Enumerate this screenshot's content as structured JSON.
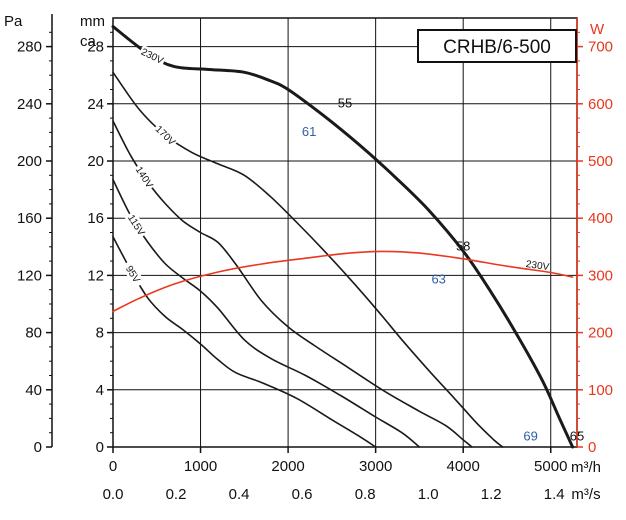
{
  "chart_data": {
    "type": "line",
    "title": "CRHB/6-500",
    "x_primary": {
      "unit": "m³/h",
      "range": [
        0,
        5300
      ],
      "ticks": [
        "0",
        "1000",
        "2000",
        "3000",
        "4000",
        "5000"
      ]
    },
    "x_secondary": {
      "unit": "m³/s",
      "ticks": [
        "0.0",
        "0.2",
        "0.4",
        "0.6",
        "0.8",
        "1.0",
        "1.2",
        "1.4"
      ]
    },
    "y_left_pa": {
      "unit": "Pa",
      "range": [
        0,
        300
      ],
      "ticks": [
        "0",
        "40",
        "80",
        "120",
        "160",
        "200",
        "240",
        "280"
      ]
    },
    "y_left_mmca": {
      "unit_line1": "mm",
      "unit_line2": "ca",
      "range": [
        0,
        30
      ],
      "ticks": [
        "0",
        "4",
        "8",
        "12",
        "16",
        "20",
        "24",
        "28"
      ]
    },
    "y_right_w": {
      "unit": "W",
      "range": [
        0,
        750
      ],
      "ticks": [
        "0",
        "100",
        "200",
        "300",
        "400",
        "500",
        "600",
        "700"
      ]
    },
    "grid": true,
    "colors": {
      "pressure": "#1a1a1a",
      "power": "#e8381e",
      "annotation_blue": "#2f5fa8"
    },
    "series": [
      {
        "name": "230V",
        "axis": "pressure_pa",
        "highlight": true,
        "points": [
          [
            0,
            294
          ],
          [
            400,
            275
          ],
          [
            700,
            266
          ],
          [
            1100,
            264
          ],
          [
            1500,
            262
          ],
          [
            1800,
            256
          ],
          [
            2000,
            250
          ],
          [
            2400,
            232
          ],
          [
            2800,
            212
          ],
          [
            3200,
            190
          ],
          [
            3600,
            166
          ],
          [
            4000,
            137
          ],
          [
            4300,
            110
          ],
          [
            4600,
            80
          ],
          [
            4900,
            47
          ],
          [
            5100,
            20
          ],
          [
            5250,
            0
          ]
        ]
      },
      {
        "name": "170V",
        "axis": "pressure_pa",
        "points": [
          [
            0,
            262
          ],
          [
            300,
            236
          ],
          [
            600,
            218
          ],
          [
            900,
            206
          ],
          [
            1200,
            198
          ],
          [
            1500,
            190
          ],
          [
            1800,
            175
          ],
          [
            2100,
            157
          ],
          [
            2400,
            138
          ],
          [
            2700,
            118
          ],
          [
            3000,
            97
          ],
          [
            3300,
            75
          ],
          [
            3600,
            54
          ],
          [
            3900,
            34
          ],
          [
            4150,
            17
          ],
          [
            4350,
            5
          ],
          [
            4450,
            0
          ]
        ]
      },
      {
        "name": "140V",
        "axis": "pressure_pa",
        "points": [
          [
            0,
            228
          ],
          [
            200,
            204
          ],
          [
            400,
            185
          ],
          [
            600,
            170
          ],
          [
            800,
            158
          ],
          [
            1000,
            150
          ],
          [
            1200,
            143
          ],
          [
            1400,
            128
          ],
          [
            1700,
            102
          ],
          [
            2000,
            84
          ],
          [
            2300,
            71
          ],
          [
            2700,
            55
          ],
          [
            3100,
            39
          ],
          [
            3500,
            25
          ],
          [
            3800,
            15
          ],
          [
            4000,
            5
          ],
          [
            4100,
            0
          ]
        ]
      },
      {
        "name": "115V",
        "axis": "pressure_pa",
        "points": [
          [
            0,
            187
          ],
          [
            200,
            162
          ],
          [
            400,
            143
          ],
          [
            600,
            128
          ],
          [
            800,
            118
          ],
          [
            1000,
            109
          ],
          [
            1200,
            97
          ],
          [
            1500,
            75
          ],
          [
            1800,
            62
          ],
          [
            2200,
            50
          ],
          [
            2600,
            36
          ],
          [
            3000,
            21
          ],
          [
            3300,
            10
          ],
          [
            3500,
            0
          ]
        ]
      },
      {
        "name": "95V",
        "axis": "pressure_pa",
        "points": [
          [
            0,
            147
          ],
          [
            200,
            124
          ],
          [
            400,
            104
          ],
          [
            600,
            91
          ],
          [
            800,
            82
          ],
          [
            1000,
            72
          ],
          [
            1200,
            61
          ],
          [
            1400,
            52
          ],
          [
            1700,
            45
          ],
          [
            2100,
            34
          ],
          [
            2500,
            19
          ],
          [
            2800,
            8
          ],
          [
            3000,
            0
          ]
        ]
      },
      {
        "name": "230V",
        "axis": "power_w",
        "points": [
          [
            0,
            237
          ],
          [
            300,
            260
          ],
          [
            700,
            285
          ],
          [
            1200,
            306
          ],
          [
            1700,
            320
          ],
          [
            2200,
            330
          ],
          [
            2700,
            339
          ],
          [
            3100,
            342
          ],
          [
            3500,
            339
          ],
          [
            4000,
            329
          ],
          [
            4500,
            316
          ],
          [
            5000,
            305
          ],
          [
            5250,
            297
          ]
        ]
      }
    ],
    "annotations": [
      {
        "text": "55",
        "x": 2650,
        "y": 241,
        "color": "#111"
      },
      {
        "text": "61",
        "x": 2240,
        "y": 221,
        "color": "#2f5fa8"
      },
      {
        "text": "58",
        "x": 4000,
        "y": 141,
        "color": "#111"
      },
      {
        "text": "63",
        "x": 3720,
        "y": 118,
        "color": "#2f5fa8"
      },
      {
        "text": "69",
        "x": 4770,
        "y": 8,
        "color": "#2f5fa8"
      },
      {
        "text": "65",
        "x": 5300,
        "y": 8,
        "color": "#111"
      }
    ]
  }
}
